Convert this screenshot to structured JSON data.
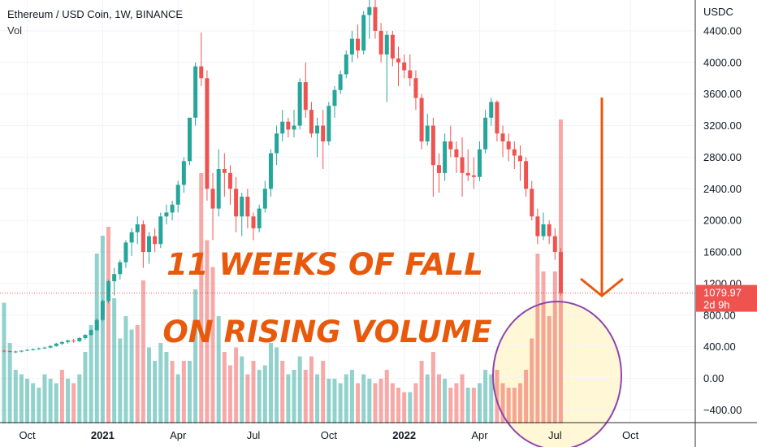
{
  "header": {
    "symbol_line": "Ethereum / USD Coin, 1W, BINANCE",
    "vol_label": "Vol"
  },
  "price_axis": {
    "currency": "USDC",
    "current_price": "1079.97",
    "countdown": "2d 9h"
  },
  "annotations": {
    "line1": "11 WEEKS OF FALL",
    "line2": "ON RISING VOLUME"
  },
  "colors": {
    "up": "#26a69a",
    "down": "#ef5350",
    "annotation_text": "#e8590c",
    "arrow": "#e8590c",
    "circle_stroke": "#8e44ad",
    "circle_fill": "#fff7d6",
    "current_price_bg": "#ef5350"
  },
  "chart_data": {
    "type": "candlestick",
    "title": "Ethereum / USD Coin, 1W, BINANCE",
    "ylabel": "USDC",
    "ylim": [
      -550,
      4780
    ],
    "y_ticks": [
      -400,
      0,
      400,
      800,
      1200,
      1600,
      2000,
      2400,
      2800,
      3200,
      3600,
      4000,
      4400
    ],
    "y_tick_labels": [
      "−400.00",
      "0.00",
      "400.00",
      "800.00",
      "1200.00",
      "1600.00",
      "2000.00",
      "2400.00",
      "2800.00",
      "3200.00",
      "3600.00",
      "4000.00",
      "4400.00"
    ],
    "x_ticks": [
      {
        "label": "Oct",
        "week": 4,
        "bold": false
      },
      {
        "label": "2021",
        "week": 17,
        "bold": true
      },
      {
        "label": "Apr",
        "week": 30,
        "bold": false
      },
      {
        "label": "Jul",
        "week": 43,
        "bold": false
      },
      {
        "label": "Oct",
        "week": 56,
        "bold": false
      },
      {
        "label": "2022",
        "week": 69,
        "bold": true
      },
      {
        "label": "Apr",
        "week": 82,
        "bold": false
      },
      {
        "label": "Jul",
        "week": 95,
        "bold": false
      },
      {
        "label": "Oct",
        "week": 108,
        "bold": false
      }
    ],
    "weeks": 111,
    "candles": [
      [
        350,
        360,
        330,
        345
      ],
      [
        345,
        355,
        325,
        335
      ],
      [
        335,
        350,
        320,
        340
      ],
      [
        340,
        355,
        330,
        350
      ],
      [
        350,
        370,
        345,
        360
      ],
      [
        360,
        380,
        350,
        370
      ],
      [
        370,
        390,
        360,
        380
      ],
      [
        380,
        400,
        370,
        390
      ],
      [
        390,
        420,
        380,
        410
      ],
      [
        410,
        450,
        400,
        440
      ],
      [
        440,
        470,
        420,
        460
      ],
      [
        460,
        490,
        440,
        480
      ],
      [
        480,
        500,
        450,
        470
      ],
      [
        470,
        520,
        460,
        510
      ],
      [
        510,
        560,
        490,
        550
      ],
      [
        550,
        620,
        540,
        610
      ],
      [
        610,
        760,
        600,
        740
      ],
      [
        740,
        1000,
        720,
        980
      ],
      [
        980,
        1250,
        950,
        1230
      ],
      [
        1230,
        1400,
        1050,
        1320
      ],
      [
        1320,
        1500,
        1250,
        1470
      ],
      [
        1470,
        1750,
        1400,
        1720
      ],
      [
        1720,
        1900,
        1550,
        1850
      ],
      [
        1850,
        2050,
        1700,
        1950
      ],
      [
        1950,
        2000,
        1400,
        1600
      ],
      [
        1600,
        1850,
        1450,
        1800
      ],
      [
        1800,
        1900,
        1600,
        1700
      ],
      [
        1700,
        2100,
        1650,
        2050
      ],
      [
        2050,
        2200,
        1950,
        2100
      ],
      [
        2100,
        2250,
        2000,
        2200
      ],
      [
        2200,
        2500,
        2100,
        2450
      ],
      [
        2450,
        2800,
        2350,
        2750
      ],
      [
        2750,
        3300,
        2700,
        3300
      ],
      [
        3300,
        4000,
        3200,
        3950
      ],
      [
        3950,
        4380,
        3700,
        3800
      ],
      [
        3800,
        3900,
        2250,
        2400
      ],
      [
        2400,
        2600,
        1750,
        2150
      ],
      [
        2150,
        2900,
        2050,
        2650
      ],
      [
        2650,
        2850,
        2300,
        2600
      ],
      [
        2600,
        2700,
        2200,
        2400
      ],
      [
        2400,
        2550,
        1850,
        2050
      ],
      [
        2050,
        2350,
        1800,
        2300
      ],
      [
        2300,
        2400,
        1900,
        2050
      ],
      [
        2050,
        2100,
        1750,
        1900
      ],
      [
        1900,
        2200,
        1850,
        2150
      ],
      [
        2150,
        2500,
        2100,
        2400
      ],
      [
        2400,
        2900,
        2300,
        2850
      ],
      [
        2850,
        3200,
        2700,
        3100
      ],
      [
        3100,
        3400,
        3000,
        3250
      ],
      [
        3250,
        3300,
        3050,
        3150
      ],
      [
        3150,
        3400,
        3050,
        3200
      ],
      [
        3200,
        3800,
        3150,
        3750
      ],
      [
        3750,
        4000,
        3300,
        3400
      ],
      [
        3400,
        3500,
        3050,
        3100
      ],
      [
        3100,
        3300,
        2800,
        3200
      ],
      [
        3200,
        3400,
        2650,
        3000
      ],
      [
        3000,
        3500,
        2950,
        3450
      ],
      [
        3450,
        3700,
        3300,
        3650
      ],
      [
        3650,
        3900,
        3600,
        3850
      ],
      [
        3850,
        4150,
        3800,
        4100
      ],
      [
        4100,
        4400,
        4000,
        4300
      ],
      [
        4300,
        4480,
        4050,
        4150
      ],
      [
        4150,
        4650,
        4100,
        4600
      ],
      [
        4600,
        4820,
        4300,
        4700
      ],
      [
        4700,
        4850,
        4300,
        4400
      ],
      [
        4400,
        4500,
        4000,
        4100
      ],
      [
        4100,
        4400,
        3500,
        4350
      ],
      [
        4350,
        4400,
        3950,
        4050
      ],
      [
        4050,
        4200,
        3700,
        4000
      ],
      [
        4000,
        4100,
        3800,
        3900
      ],
      [
        3900,
        4100,
        3700,
        3800
      ],
      [
        3800,
        3900,
        3400,
        3550
      ],
      [
        3550,
        3600,
        2900,
        3000
      ],
      [
        3000,
        3350,
        2950,
        3200
      ],
      [
        3200,
        3300,
        2300,
        2700
      ],
      [
        2700,
        2850,
        2350,
        2600
      ],
      [
        2600,
        3100,
        2500,
        3000
      ],
      [
        3000,
        3200,
        2800,
        2900
      ],
      [
        2900,
        3000,
        2600,
        2800
      ],
      [
        2800,
        3050,
        2300,
        2600
      ],
      [
        2600,
        2900,
        2500,
        2570
      ],
      [
        2570,
        2800,
        2400,
        2550
      ],
      [
        2550,
        3000,
        2500,
        2900
      ],
      [
        2900,
        3400,
        2850,
        3300
      ],
      [
        3300,
        3550,
        3200,
        3500
      ],
      [
        3500,
        3520,
        3000,
        3100
      ],
      [
        3100,
        3200,
        2800,
        3000
      ],
      [
        3000,
        3100,
        2750,
        2900
      ],
      [
        2900,
        3000,
        2650,
        2820
      ],
      [
        2820,
        2950,
        2500,
        2750
      ],
      [
        2750,
        2800,
        2300,
        2400
      ],
      [
        2400,
        2500,
        2000,
        2050
      ],
      [
        2050,
        2150,
        1700,
        1800
      ],
      [
        1800,
        2100,
        1750,
        1950
      ],
      [
        1950,
        2000,
        1700,
        1800
      ],
      [
        1800,
        1900,
        1500,
        1600
      ],
      [
        1600,
        1650,
        1050,
        1080
      ]
    ],
    "volume": [
      [
        135,
        1
      ],
      [
        90,
        1
      ],
      [
        60,
        1
      ],
      [
        55,
        1
      ],
      [
        50,
        1
      ],
      [
        45,
        1
      ],
      [
        40,
        1
      ],
      [
        55,
        1
      ],
      [
        50,
        1
      ],
      [
        45,
        1
      ],
      [
        60,
        0
      ],
      [
        50,
        1
      ],
      [
        45,
        0
      ],
      [
        55,
        1
      ],
      [
        80,
        1
      ],
      [
        110,
        1
      ],
      [
        190,
        1
      ],
      [
        210,
        1
      ],
      [
        220,
        0
      ],
      [
        140,
        1
      ],
      [
        95,
        1
      ],
      [
        120,
        1
      ],
      [
        105,
        1
      ],
      [
        110,
        0
      ],
      [
        160,
        0
      ],
      [
        85,
        1
      ],
      [
        70,
        1
      ],
      [
        90,
        1
      ],
      [
        80,
        1
      ],
      [
        70,
        0
      ],
      [
        55,
        1
      ],
      [
        70,
        0
      ],
      [
        70,
        1
      ],
      [
        150,
        1
      ],
      [
        280,
        0
      ],
      [
        205,
        0
      ],
      [
        175,
        0
      ],
      [
        120,
        1
      ],
      [
        80,
        0
      ],
      [
        65,
        0
      ],
      [
        85,
        0
      ],
      [
        75,
        1
      ],
      [
        55,
        0
      ],
      [
        70,
        0
      ],
      [
        60,
        1
      ],
      [
        65,
        1
      ],
      [
        90,
        1
      ],
      [
        85,
        1
      ],
      [
        70,
        0
      ],
      [
        55,
        1
      ],
      [
        60,
        1
      ],
      [
        75,
        1
      ],
      [
        60,
        0
      ],
      [
        75,
        0
      ],
      [
        55,
        1
      ],
      [
        70,
        0
      ],
      [
        50,
        1
      ],
      [
        50,
        1
      ],
      [
        45,
        1
      ],
      [
        55,
        1
      ],
      [
        60,
        1
      ],
      [
        45,
        0
      ],
      [
        55,
        1
      ],
      [
        50,
        1
      ],
      [
        45,
        0
      ],
      [
        50,
        0
      ],
      [
        60,
        0
      ],
      [
        45,
        0
      ],
      [
        40,
        0
      ],
      [
        35,
        0
      ],
      [
        35,
        1
      ],
      [
        45,
        0
      ],
      [
        70,
        0
      ],
      [
        55,
        1
      ],
      [
        80,
        0
      ],
      [
        55,
        0
      ],
      [
        50,
        1
      ],
      [
        40,
        0
      ],
      [
        45,
        0
      ],
      [
        55,
        0
      ],
      [
        40,
        1
      ],
      [
        40,
        0
      ],
      [
        45,
        1
      ],
      [
        60,
        1
      ],
      [
        55,
        1
      ],
      [
        60,
        0
      ],
      [
        45,
        0
      ],
      [
        40,
        0
      ],
      [
        40,
        0
      ],
      [
        45,
        0
      ],
      [
        60,
        0
      ],
      [
        95,
        0
      ],
      [
        190,
        0
      ],
      [
        170,
        0
      ],
      [
        120,
        0
      ],
      [
        170,
        0
      ],
      [
        340,
        0
      ]
    ]
  }
}
